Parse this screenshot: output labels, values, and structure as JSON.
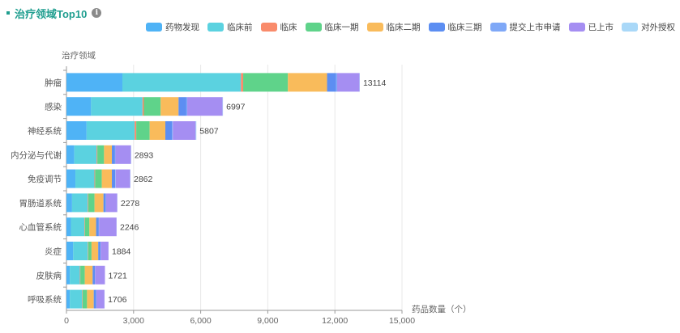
{
  "header": {
    "title": "治疗领域Top10"
  },
  "chart_data": {
    "type": "bar",
    "orientation": "horizontal",
    "stacked": true,
    "ylabel": "治疗领域",
    "xlabel": "药品数量（个）",
    "xlim": [
      0,
      15000
    ],
    "x_ticks": [
      "0",
      "3,000",
      "6,000",
      "9,000",
      "12,000",
      "15,000"
    ],
    "categories": [
      "肿瘤",
      "感染",
      "神经系统",
      "内分泌与代谢",
      "免疫调节",
      "胃肠道系统",
      "心血管系统",
      "炎症",
      "皮肤病",
      "呼吸系统"
    ],
    "totals": [
      13114,
      6997,
      5807,
      2893,
      2862,
      2278,
      2246,
      1884,
      1721,
      1706
    ],
    "legend_position": "top-right",
    "grid": true,
    "series": [
      {
        "name": "药物发现",
        "color": "#4fb3f6",
        "values": [
          2500,
          1100,
          900,
          350,
          400,
          250,
          200,
          300,
          150,
          150
        ]
      },
      {
        "name": "临床前",
        "color": "#5bd2e0",
        "values": [
          5300,
          2300,
          2150,
          1000,
          850,
          700,
          600,
          650,
          450,
          550
        ]
      },
      {
        "name": "临床",
        "color": "#f98b6b",
        "values": [
          100,
          60,
          70,
          30,
          30,
          25,
          25,
          20,
          20,
          20
        ]
      },
      {
        "name": "临床一期",
        "color": "#5fd38a",
        "values": [
          2000,
          750,
          600,
          300,
          300,
          280,
          200,
          150,
          200,
          200
        ]
      },
      {
        "name": "临床二期",
        "color": "#f9bb5b",
        "values": [
          1750,
          800,
          700,
          350,
          450,
          400,
          300,
          300,
          350,
          300
        ]
      },
      {
        "name": "临床三期",
        "color": "#5c8ef2",
        "values": [
          400,
          350,
          300,
          140,
          150,
          100,
          120,
          100,
          100,
          110
        ]
      },
      {
        "name": "提交上市申请",
        "color": "#7fa8f7",
        "values": [
          50,
          40,
          35,
          20,
          20,
          15,
          15,
          10,
          10,
          10
        ]
      },
      {
        "name": "已上市",
        "color": "#a58ef2",
        "values": [
          1000,
          1580,
          1020,
          690,
          650,
          500,
          780,
          350,
          440,
          360
        ]
      },
      {
        "name": "对外授权",
        "color": "#a9d8f8",
        "values": [
          14,
          17,
          32,
          13,
          12,
          8,
          6,
          4,
          1,
          6
        ]
      }
    ]
  }
}
